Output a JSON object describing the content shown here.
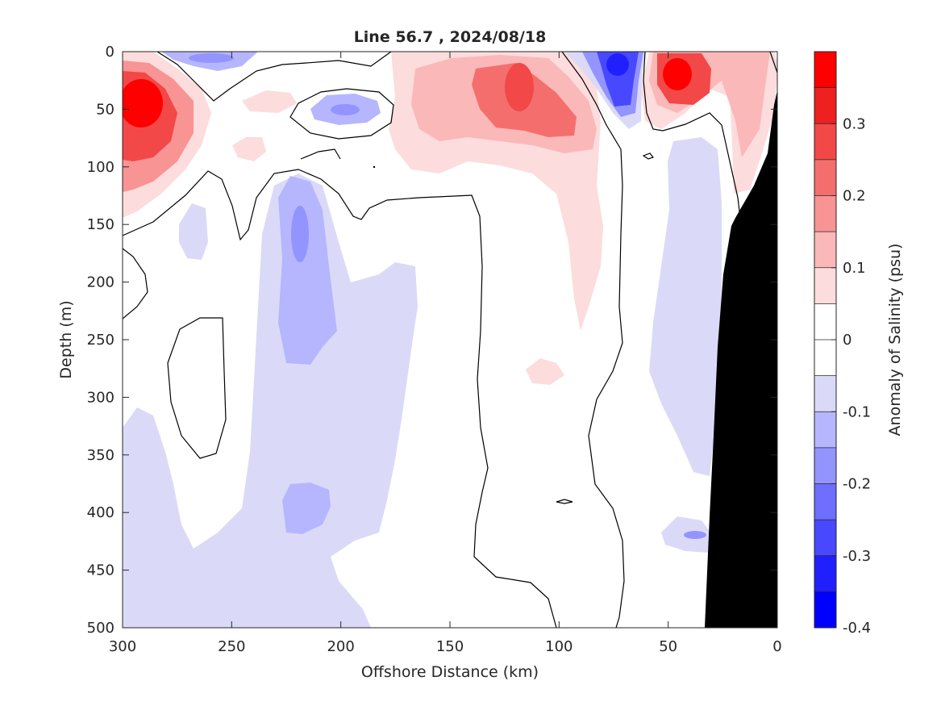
{
  "chart_data": {
    "type": "filled-contour",
    "title": "Line 56.7 , 2024/08/18",
    "xlabel": "Offshore Distance (km)",
    "ylabel": "Depth (m)",
    "colorbar_label": "Anomaly of Salinity (psu)",
    "xlim": [
      300,
      0
    ],
    "x_reversed": true,
    "ylim": [
      0,
      500
    ],
    "y_reversed": true,
    "x_ticks": [
      "300",
      "250",
      "200",
      "150",
      "100",
      "50",
      "0"
    ],
    "y_ticks": [
      "0",
      "50",
      "100",
      "150",
      "200",
      "250",
      "300",
      "350",
      "400",
      "450",
      "500"
    ],
    "colorbar": {
      "range": [
        -0.4,
        0.4
      ],
      "levels": [
        -0.4,
        -0.35,
        -0.3,
        -0.25,
        -0.2,
        -0.15,
        -0.1,
        -0.05,
        0,
        0.05,
        0.1,
        0.15,
        0.2,
        0.25,
        0.3,
        0.35,
        0.4
      ],
      "tick_values": [
        0.3,
        0.2,
        0.1,
        0,
        -0.1,
        -0.2,
        -0.3,
        -0.4
      ],
      "tick_labels": [
        "0.3",
        "0.2",
        "0.1",
        "0",
        "-0.1",
        "-0.2",
        "-0.3",
        "-0.4"
      ],
      "colors": [
        "#0000ff",
        "#2020ff",
        "#4848ff",
        "#6e6eff",
        "#9494ff",
        "#b6b6ff",
        "#dadaf8",
        "#ffffff",
        "#ffffff",
        "#fcdcdc",
        "#fbb8b8",
        "#f89494",
        "#f56e6e",
        "#f24848",
        "#ee2020",
        "#ff0000"
      ]
    },
    "bathymetry_color": "#000000",
    "anomaly_features": [
      {
        "x": 288,
        "depth": 40,
        "value": 0.35
      },
      {
        "x": 232,
        "depth": 40,
        "value": 0.1
      },
      {
        "x": 200,
        "depth": 50,
        "value": -0.15
      },
      {
        "x": 250,
        "depth": 10,
        "value": -0.15
      },
      {
        "x": 215,
        "depth": 160,
        "value": -0.2
      },
      {
        "x": 208,
        "depth": 400,
        "value": -0.15
      },
      {
        "x": 115,
        "depth": 40,
        "value": 0.3
      },
      {
        "x": 75,
        "depth": 30,
        "value": -0.3
      },
      {
        "x": 45,
        "depth": 25,
        "value": 0.35
      },
      {
        "x": 10,
        "depth": 40,
        "value": 0.15
      }
    ]
  }
}
